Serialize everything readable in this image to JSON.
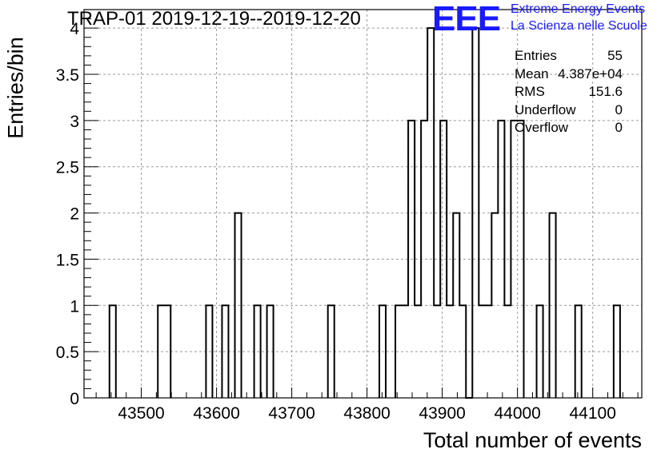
{
  "title": "TRAP-01 2019-12-19--2019-12-20",
  "logo": {
    "mark": "EEE",
    "line1": "Extreme Energy Events",
    "line2": "La Scienza nelle Scuole",
    "color": "#1a1aff"
  },
  "stats": [
    {
      "label": "Entries",
      "value": "55"
    },
    {
      "label": "Mean",
      "value": "4.387e+04"
    },
    {
      "label": "RMS",
      "value": "151.6"
    },
    {
      "label": "Underflow",
      "value": "0"
    },
    {
      "label": "Overflow",
      "value": "0"
    }
  ],
  "chart_data": {
    "type": "histogram",
    "title": "TRAP-01 2019-12-19--2019-12-20",
    "xlabel": "Total number of events",
    "ylabel": "Entries/bin",
    "xlim": [
      43423.9,
      44165.2
    ],
    "ylim": [
      0,
      4.2
    ],
    "bin_width": 8.53,
    "grid": true,
    "x_ticks": [
      43500,
      43600,
      43700,
      43800,
      43900,
      44000,
      44100
    ],
    "y_ticks": [
      0,
      0.5,
      1,
      1.5,
      2,
      2.5,
      3,
      3.5,
      4
    ],
    "x_tick_labels": [
      "43500",
      "43600",
      "43700",
      "43800",
      "43900",
      "44000",
      "44100"
    ],
    "y_tick_labels": [
      "0",
      "0.5",
      "1",
      "1.5",
      "2",
      "2.5",
      "3",
      "3.5",
      "4"
    ],
    "bins": [
      {
        "x_low": 43457.7,
        "count": 1
      },
      {
        "x_low": 43522.0,
        "count": 1
      },
      {
        "x_low": 43530.5,
        "count": 1
      },
      {
        "x_low": 43586.0,
        "count": 1
      },
      {
        "x_low": 43607.3,
        "count": 1
      },
      {
        "x_low": 43624.4,
        "count": 2
      },
      {
        "x_low": 43650.0,
        "count": 1
      },
      {
        "x_low": 43667.0,
        "count": 1
      },
      {
        "x_low": 43748.0,
        "count": 1
      },
      {
        "x_low": 43816.4,
        "count": 1
      },
      {
        "x_low": 43837.7,
        "count": 1
      },
      {
        "x_low": 43846.2,
        "count": 1
      },
      {
        "x_low": 43854.8,
        "count": 3
      },
      {
        "x_low": 43863.3,
        "count": 1
      },
      {
        "x_low": 43871.8,
        "count": 3
      },
      {
        "x_low": 43880.4,
        "count": 4
      },
      {
        "x_low": 43888.9,
        "count": 1
      },
      {
        "x_low": 43897.4,
        "count": 3
      },
      {
        "x_low": 43905.9,
        "count": 1
      },
      {
        "x_low": 43914.5,
        "count": 2
      },
      {
        "x_low": 43923.0,
        "count": 1
      },
      {
        "x_low": 43931.5,
        "count": 0
      },
      {
        "x_low": 43940.1,
        "count": 4
      },
      {
        "x_low": 43948.6,
        "count": 1
      },
      {
        "x_low": 43957.1,
        "count": 1
      },
      {
        "x_low": 43965.6,
        "count": 2
      },
      {
        "x_low": 43974.2,
        "count": 3
      },
      {
        "x_low": 43982.7,
        "count": 1
      },
      {
        "x_low": 43991.2,
        "count": 3
      },
      {
        "x_low": 43999.8,
        "count": 3
      },
      {
        "x_low": 44025.4,
        "count": 1
      },
      {
        "x_low": 44042.4,
        "count": 2
      },
      {
        "x_low": 44076.6,
        "count": 1
      },
      {
        "x_low": 44127.8,
        "count": 1
      }
    ]
  }
}
